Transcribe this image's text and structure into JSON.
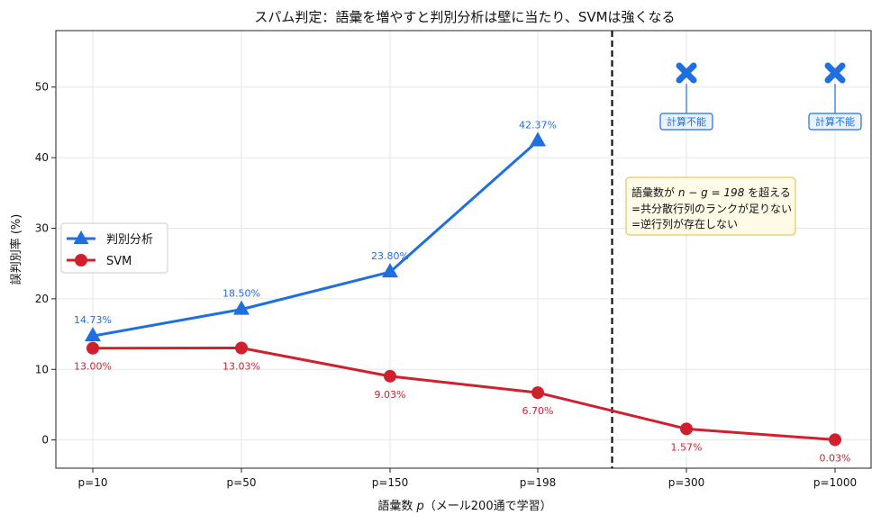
{
  "chart_data": {
    "type": "line",
    "title": "スパム判定：語彙を増やすと判別分析は壁に当たり、SVMは強くなる",
    "xlabel_prefix": "語彙数 ",
    "xlabel_var": "p",
    "xlabel_suffix": "（メール200通で学習）",
    "ylabel": "誤判別率 (%)",
    "categories": [
      "p=10",
      "p=50",
      "p=150",
      "p=198",
      "p=300",
      "p=1000"
    ],
    "ylim": [
      -4,
      58
    ],
    "yticks": [
      0,
      10,
      20,
      30,
      40,
      50
    ],
    "grid": true,
    "legend_position": "center-left",
    "series": [
      {
        "name": "判別分析",
        "color": "#1f6fe0",
        "marker": "triangle",
        "values": [
          14.73,
          18.5,
          23.8,
          42.37,
          null,
          null
        ],
        "labels": [
          "14.73%",
          "18.50%",
          "23.80%",
          "42.37%",
          "",
          ""
        ]
      },
      {
        "name": "SVM",
        "color": "#d0202e",
        "marker": "circle",
        "values": [
          13.0,
          13.03,
          9.03,
          6.7,
          1.57,
          0.03
        ],
        "labels": [
          "13.00%",
          "13.03%",
          "9.03%",
          "6.70%",
          "1.57%",
          "0.03%"
        ]
      }
    ],
    "failed_points": [
      {
        "category_index": 4,
        "y": 52,
        "label": "計算不能"
      },
      {
        "category_index": 5,
        "y": 52,
        "label": "計算不能"
      }
    ],
    "vline_between": [
      3,
      4
    ],
    "annotation": {
      "line1_pre": "語彙数が ",
      "line1_math": "n − g = 198",
      "line1_post": " を超える",
      "line2": "=共分散行列のランクが足りない",
      "line3": "=逆行列が存在しない"
    }
  }
}
